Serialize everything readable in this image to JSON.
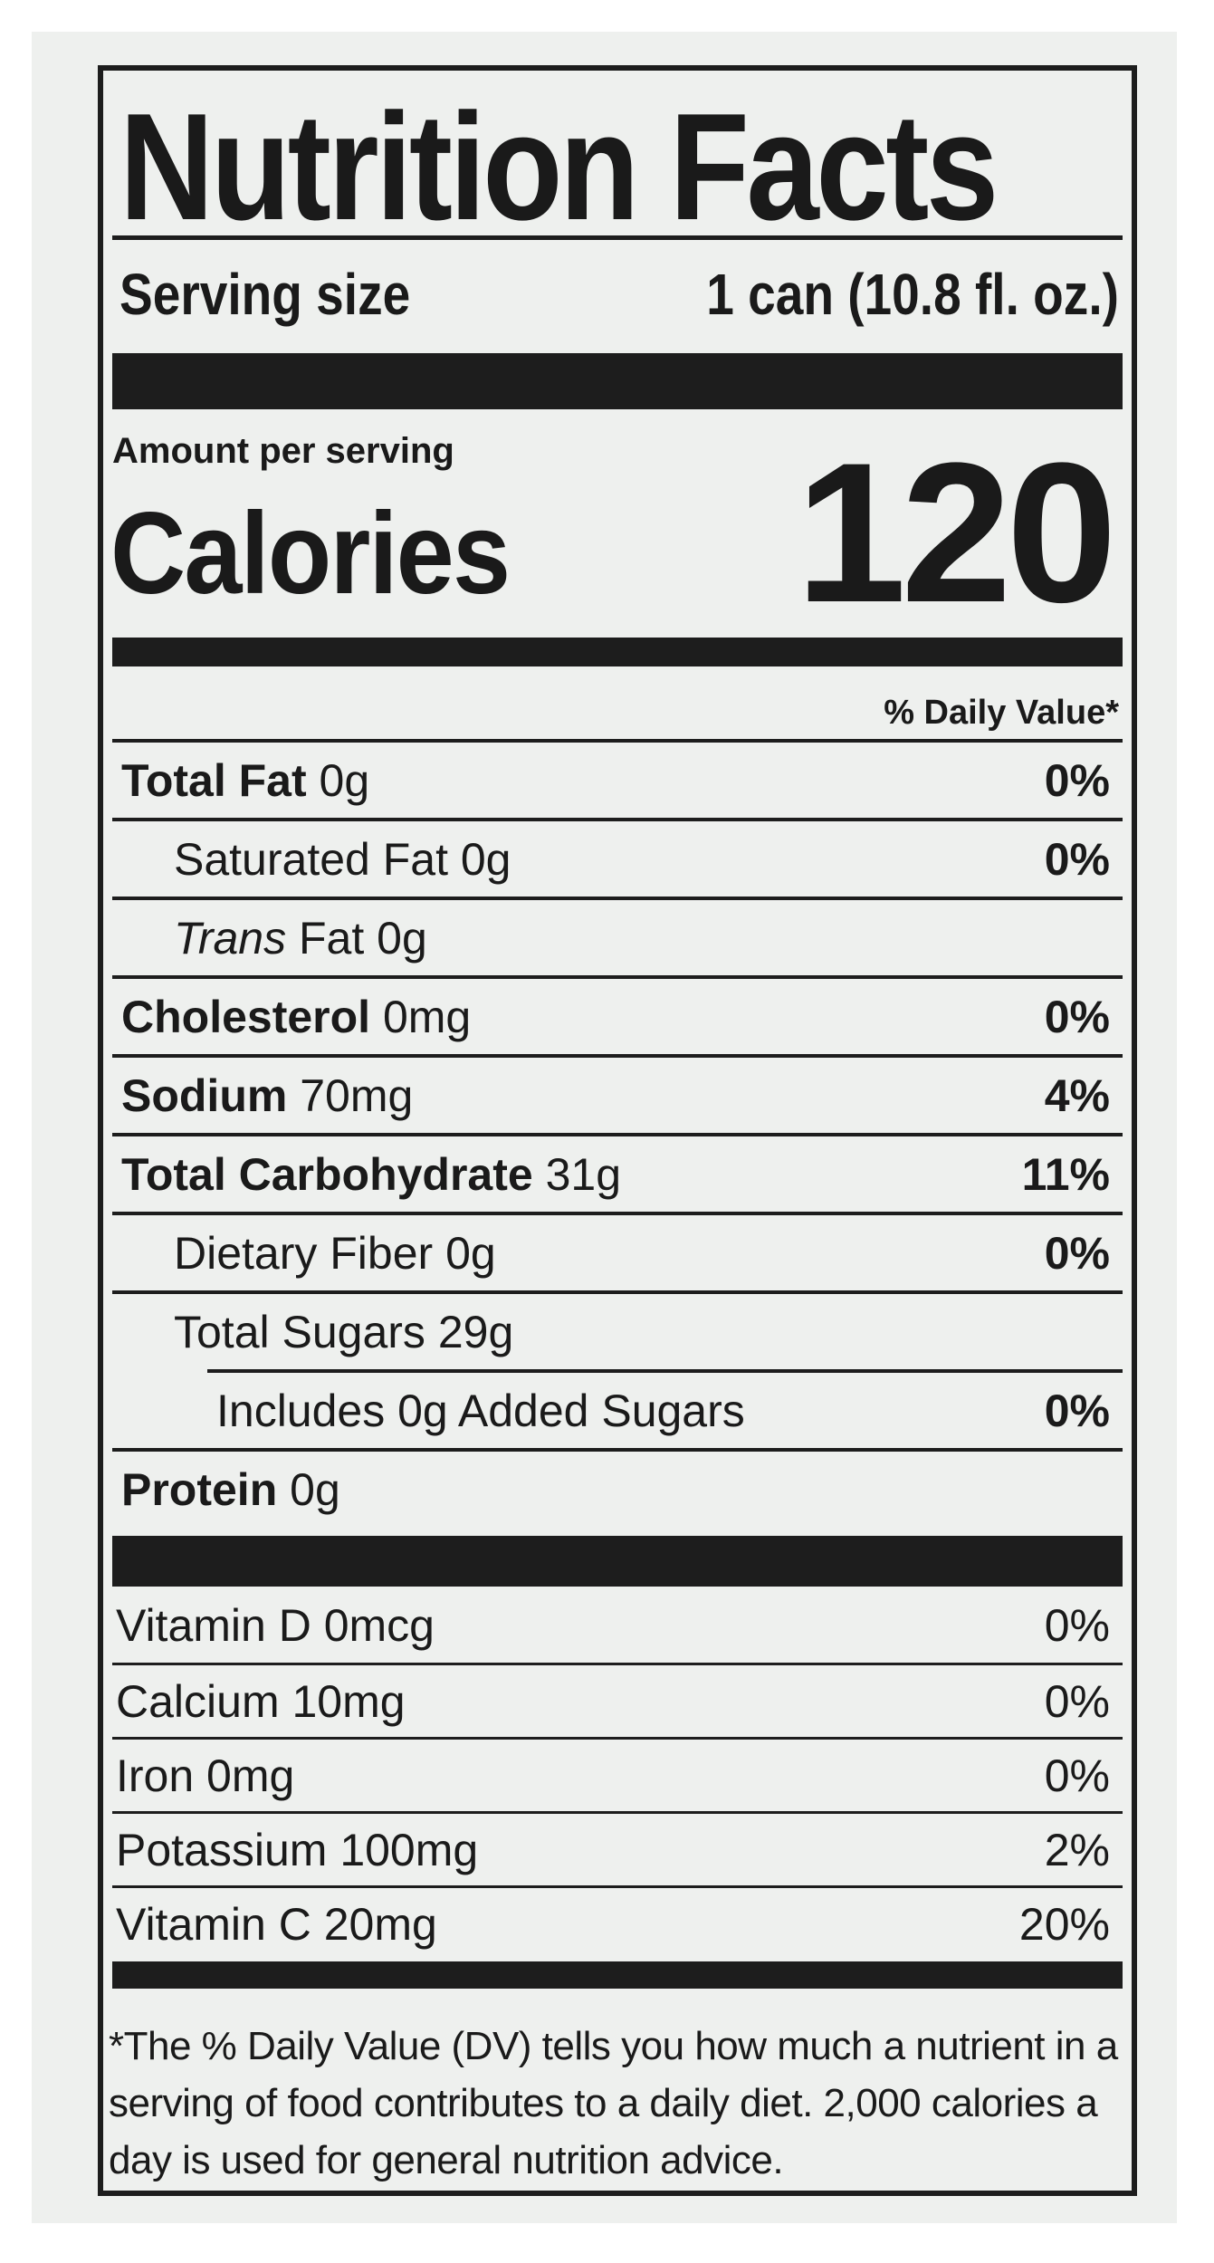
{
  "title": "Nutrition Facts",
  "serving": {
    "label": "Serving size",
    "value": "1 can (10.8 fl. oz.)"
  },
  "amount_per_serving": "Amount per serving",
  "calories": {
    "label": "Calories",
    "value": "120"
  },
  "daily_value_header": "% Daily Value*",
  "nutrients": [
    {
      "name": "Total Fat",
      "amount": "0g",
      "dv": "0%"
    },
    {
      "name": "Saturated Fat",
      "amount": "0g",
      "dv": "0%"
    },
    {
      "name_italic": "Trans",
      "name": "Fat",
      "amount": "0g",
      "dv": ""
    },
    {
      "name": "Cholesterol",
      "amount": "0mg",
      "dv": "0%"
    },
    {
      "name": "Sodium",
      "amount": "70mg",
      "dv": "4%"
    },
    {
      "name": "Total Carbohydrate",
      "amount": "31g",
      "dv": "11%"
    },
    {
      "name": "Dietary Fiber",
      "amount": "0g",
      "dv": "0%"
    },
    {
      "name": "Total Sugars",
      "amount": "29g",
      "dv": ""
    },
    {
      "name": "Includes 0g Added Sugars",
      "amount": "",
      "dv": "0%"
    },
    {
      "name": "Protein",
      "amount": "0g",
      "dv": ""
    }
  ],
  "vitamins": [
    {
      "name": "Vitamin D 0mcg",
      "dv": "0%"
    },
    {
      "name": "Calcium 10mg",
      "dv": "0%"
    },
    {
      "name": "Iron 0mg",
      "dv": "0%"
    },
    {
      "name": "Potassium 100mg",
      "dv": "2%"
    },
    {
      "name": "Vitamin C 20mg",
      "dv": "20%"
    }
  ],
  "footnote": "*The % Daily Value (DV) tells you how much a nutrient in a serving of food contributes to a daily diet. 2,000 calories a day is used for general nutrition advice."
}
